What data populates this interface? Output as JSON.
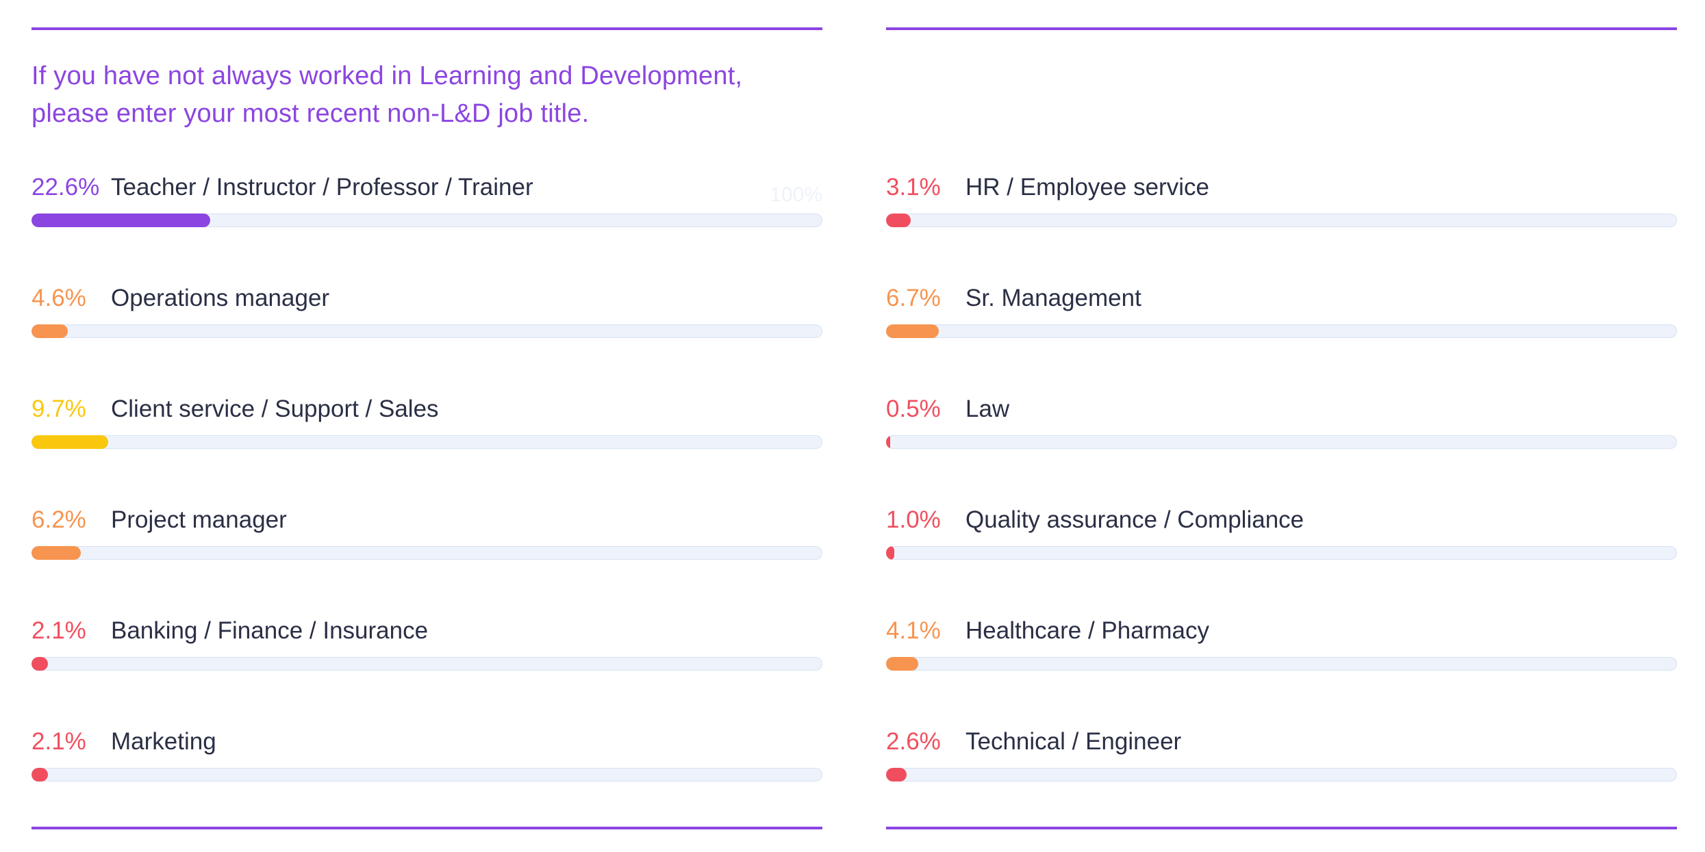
{
  "title": "If you have not always worked in Learning and Development, please enter your most recent non-L&D job title.",
  "scale_max_label": "100%",
  "colors": {
    "accent": "#8b45e0",
    "orange": "#f7944f",
    "yellow": "#f9c80e",
    "red": "#f04e5e",
    "track": "#edf2fb",
    "label": "#2a2f45"
  },
  "chart_data": {
    "type": "bar",
    "orientation": "horizontal",
    "title": "If you have not always worked in Learning and Development, please enter your most recent non-L&D job title.",
    "xlim": [
      0,
      100
    ],
    "unit": "%",
    "columns": [
      {
        "items": [
          {
            "pct": "22.6%",
            "value": 22.6,
            "label": "Teacher / Instructor / Professor / Trainer",
            "color": "#8b45e0"
          },
          {
            "pct": "4.6%",
            "value": 4.6,
            "label": "Operations manager",
            "color": "#f7944f"
          },
          {
            "pct": "9.7%",
            "value": 9.7,
            "label": "Client service / Support / Sales",
            "color": "#f9c80e"
          },
          {
            "pct": "6.2%",
            "value": 6.2,
            "label": "Project manager",
            "color": "#f7944f"
          },
          {
            "pct": "2.1%",
            "value": 2.1,
            "label": "Banking / Finance / Insurance",
            "color": "#f04e5e"
          },
          {
            "pct": "2.1%",
            "value": 2.1,
            "label": "Marketing",
            "color": "#f04e5e"
          }
        ]
      },
      {
        "items": [
          {
            "pct": "3.1%",
            "value": 3.1,
            "label": "HR / Employee service",
            "color": "#f04e5e"
          },
          {
            "pct": "6.7%",
            "value": 6.7,
            "label": "Sr. Management",
            "color": "#f7944f"
          },
          {
            "pct": "0.5%",
            "value": 0.5,
            "label": "Law",
            "color": "#f04e5e"
          },
          {
            "pct": "1.0%",
            "value": 1.0,
            "label": "Quality assurance / Compliance",
            "color": "#f04e5e"
          },
          {
            "pct": "4.1%",
            "value": 4.1,
            "label": "Healthcare / Pharmacy",
            "color": "#f7944f"
          },
          {
            "pct": "2.6%",
            "value": 2.6,
            "label": "Technical / Engineer",
            "color": "#f04e5e"
          }
        ]
      }
    ]
  }
}
